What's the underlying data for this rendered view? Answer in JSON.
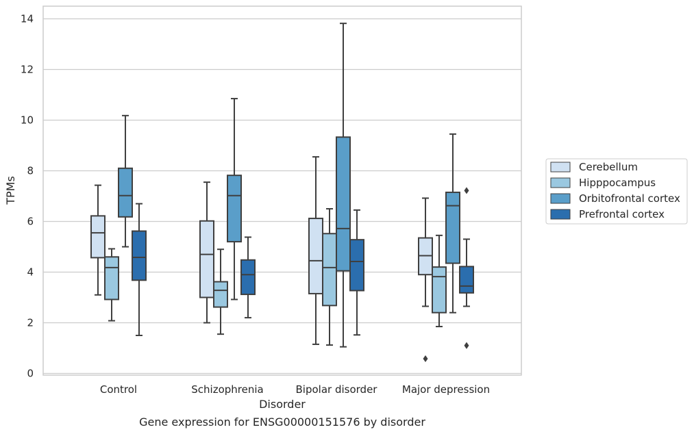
{
  "chart_data": {
    "type": "box",
    "xlabel": "Disorder",
    "ylabel": "TPMs",
    "caption": "Gene expression for ENSG00000151576 by disorder",
    "ylim": [
      0,
      14.5
    ],
    "yticks": [
      0,
      2,
      4,
      6,
      8,
      10,
      12,
      14
    ],
    "grid": true,
    "legend_position": "right",
    "categories": [
      "Control",
      "Schizophrenia",
      "Bipolar disorder",
      "Major depression"
    ],
    "series": [
      {
        "name": "Cerebellum",
        "color": "#d0e1f2",
        "boxes": [
          {
            "whisker_low": 3.1,
            "q1": 4.57,
            "median": 5.55,
            "q3": 6.22,
            "whisker_high": 7.43,
            "outliers": []
          },
          {
            "whisker_low": 2.0,
            "q1": 3.0,
            "median": 4.7,
            "q3": 6.02,
            "whisker_high": 7.55,
            "outliers": []
          },
          {
            "whisker_low": 1.15,
            "q1": 3.15,
            "median": 4.45,
            "q3": 6.12,
            "whisker_high": 8.55,
            "outliers": []
          },
          {
            "whisker_low": 2.65,
            "q1": 3.9,
            "median": 4.65,
            "q3": 5.35,
            "whisker_high": 6.92,
            "outliers": [
              0.58
            ]
          }
        ]
      },
      {
        "name": "Hipppocampus",
        "color": "#9ac8e0",
        "boxes": [
          {
            "whisker_low": 2.08,
            "q1": 2.92,
            "median": 4.18,
            "q3": 4.6,
            "whisker_high": 4.92,
            "outliers": []
          },
          {
            "whisker_low": 1.55,
            "q1": 2.62,
            "median": 3.28,
            "q3": 3.62,
            "whisker_high": 4.9,
            "outliers": []
          },
          {
            "whisker_low": 1.12,
            "q1": 2.68,
            "median": 4.18,
            "q3": 5.52,
            "whisker_high": 6.5,
            "outliers": []
          },
          {
            "whisker_low": 1.85,
            "q1": 2.4,
            "median": 3.82,
            "q3": 4.2,
            "whisker_high": 5.45,
            "outliers": []
          }
        ]
      },
      {
        "name": "Orbitofrontal cortex",
        "color": "#5a9ec9",
        "boxes": [
          {
            "whisker_low": 5.0,
            "q1": 6.18,
            "median": 7.02,
            "q3": 8.1,
            "whisker_high": 10.18,
            "outliers": []
          },
          {
            "whisker_low": 2.92,
            "q1": 5.2,
            "median": 7.02,
            "q3": 7.82,
            "whisker_high": 10.85,
            "outliers": []
          },
          {
            "whisker_low": 1.05,
            "q1": 4.05,
            "median": 5.72,
            "q3": 9.33,
            "whisker_high": 13.82,
            "outliers": []
          },
          {
            "whisker_low": 2.4,
            "q1": 4.35,
            "median": 6.62,
            "q3": 7.15,
            "whisker_high": 9.45,
            "outliers": []
          }
        ]
      },
      {
        "name": "Prefrontal cortex",
        "color": "#2b6eae",
        "boxes": [
          {
            "whisker_low": 1.5,
            "q1": 3.68,
            "median": 4.58,
            "q3": 5.62,
            "whisker_high": 6.7,
            "outliers": []
          },
          {
            "whisker_low": 2.2,
            "q1": 3.12,
            "median": 3.9,
            "q3": 4.48,
            "whisker_high": 5.38,
            "outliers": []
          },
          {
            "whisker_low": 1.52,
            "q1": 3.27,
            "median": 4.42,
            "q3": 5.28,
            "whisker_high": 6.45,
            "outliers": []
          },
          {
            "whisker_low": 2.65,
            "q1": 3.18,
            "median": 3.45,
            "q3": 4.22,
            "whisker_high": 5.3,
            "outliers": [
              1.1,
              7.22
            ]
          }
        ]
      }
    ]
  }
}
